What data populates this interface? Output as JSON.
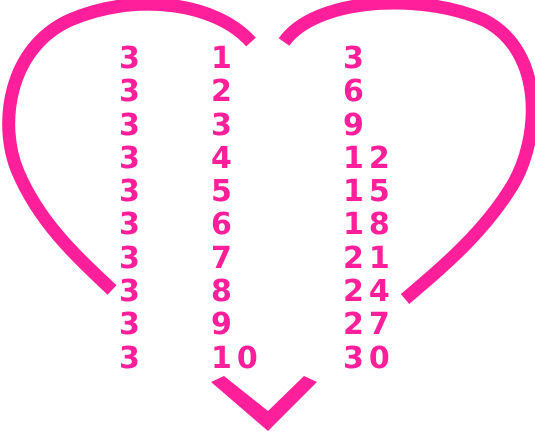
{
  "colors": {
    "heart": "#ff1f9a",
    "numbers": "#ff1f9a",
    "background": "#ffffff"
  },
  "icon": "heart-outline-icon",
  "table": {
    "factor_column": [
      "3",
      "3",
      "3",
      "3",
      "3",
      "3",
      "3",
      "3",
      "3",
      "3"
    ],
    "multiplier_column": [
      "1",
      "2",
      "3",
      "4",
      "5",
      "6",
      "7",
      "8",
      "9",
      "10"
    ],
    "product_column": [
      "3",
      "6",
      "9",
      "12",
      "15",
      "18",
      "21",
      "24",
      "27",
      "30"
    ]
  }
}
